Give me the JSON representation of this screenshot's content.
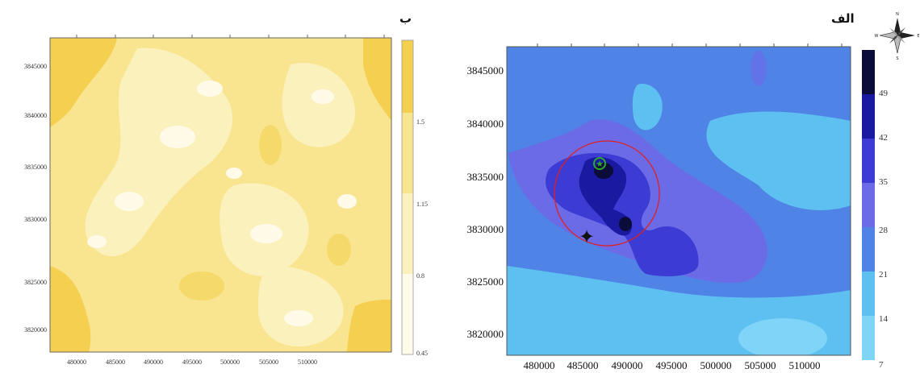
{
  "panels": {
    "left": {
      "letter": "ب",
      "y_ticks": [
        "3845000",
        "3840000",
        "3835000",
        "3830000",
        "3825000",
        "3820000"
      ],
      "x_ticks": [
        "480000",
        "485000",
        "490000",
        "495000",
        "500000",
        "505000",
        "510000"
      ],
      "legend_labels": [
        "1.5",
        "1.15",
        "0.8",
        "0.45"
      ],
      "legend_colors": [
        "#f5cf4f",
        "#f9e48f",
        "#fbf1bd",
        "#fffbe8"
      ]
    },
    "right": {
      "letter": "الف",
      "y_ticks": [
        "3845000",
        "3840000",
        "3835000",
        "3830000",
        "3825000",
        "3820000"
      ],
      "x_ticks": [
        "480000",
        "485000",
        "490000",
        "495000",
        "500000",
        "505000",
        "510000"
      ],
      "legend_labels": [
        "49",
        "42",
        "35",
        "28",
        "21",
        "14",
        "7"
      ],
      "legend_colors": [
        "#0c0c3a",
        "#1a1aa0",
        "#3c3cd4",
        "#6b6be8",
        "#4f84e6",
        "#5ec0f0",
        "#7fd4f8"
      ],
      "compass_label": "N",
      "compass_letters": {
        "north": "N",
        "south": "S",
        "east": "E",
        "west": "W"
      }
    }
  },
  "colors": {
    "accent": "#e02020",
    "site_marker": "#2eaa2e"
  }
}
